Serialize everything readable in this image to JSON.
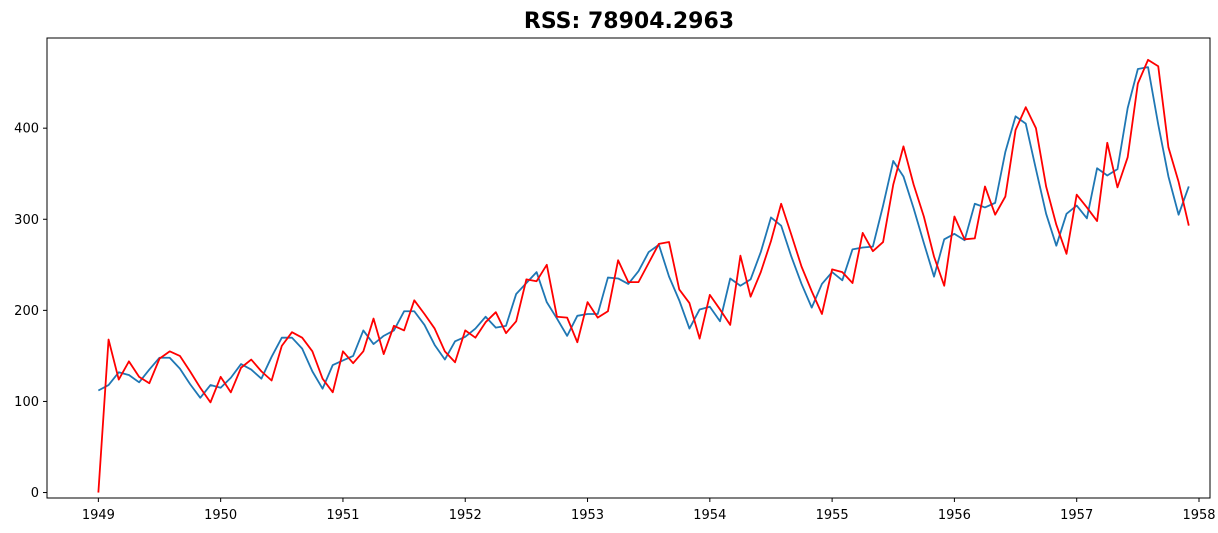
{
  "chart_data": {
    "type": "line",
    "title": "RSS: 78904.2963",
    "xlabel": "",
    "ylabel": "",
    "xlim": [
      1948.58,
      1958.09
    ],
    "ylim": [
      -6,
      499
    ],
    "x_ticks": [
      1949,
      1950,
      1951,
      1952,
      1953,
      1954,
      1955,
      1956,
      1957,
      1958
    ],
    "x_tick_labels": [
      "1949",
      "1950",
      "1951",
      "1952",
      "1953",
      "1954",
      "1955",
      "1956",
      "1957",
      "1958"
    ],
    "y_ticks": [
      0,
      100,
      200,
      300,
      400
    ],
    "y_tick_labels": [
      "0",
      "100",
      "200",
      "300",
      "400"
    ],
    "grid": false,
    "legend": "none",
    "x_start": "1949-01",
    "x_step": "1 month",
    "series": [
      {
        "color": "#1f77b4",
        "values": [
          112,
          118,
          132,
          129,
          121,
          135,
          148,
          148,
          136,
          119,
          104,
          118,
          115,
          126,
          141,
          135,
          125,
          149,
          170,
          170,
          158,
          133,
          114,
          140,
          145,
          150,
          178,
          163,
          172,
          178,
          199,
          199,
          184,
          162,
          146,
          166,
          171,
          180,
          193,
          181,
          183,
          218,
          230,
          242,
          209,
          191,
          172,
          194,
          196,
          196,
          236,
          235,
          229,
          243,
          264,
          272,
          237,
          211,
          180,
          201,
          204,
          188,
          235,
          227,
          234,
          264,
          302,
          293,
          259,
          229,
          203,
          229,
          242,
          233,
          267,
          269,
          270,
          315,
          364,
          347,
          312,
          274,
          237,
          278,
          284,
          277,
          317,
          313,
          318,
          374,
          413,
          405,
          355,
          306,
          271,
          306,
          315,
          301,
          356,
          348,
          355,
          422,
          465,
          467,
          404,
          347,
          305,
          336
        ]
      },
      {
        "color": "#ff0000",
        "values": [
          0,
          168,
          124,
          144,
          127,
          120,
          147,
          155,
          150,
          133,
          115,
          99,
          127,
          110,
          137,
          146,
          133,
          123,
          161,
          176,
          170,
          155,
          125,
          110,
          155,
          142,
          155,
          191,
          152,
          183,
          178,
          211,
          196,
          180,
          155,
          143,
          178,
          170,
          187,
          198,
          175,
          188,
          234,
          232,
          250,
          193,
          192,
          165,
          209,
          192,
          199,
          255,
          231,
          231,
          252,
          273,
          275,
          223,
          208,
          169,
          217,
          201,
          184,
          260,
          215,
          242,
          276,
          317,
          283,
          248,
          221,
          196,
          245,
          242,
          230,
          285,
          265,
          275,
          338,
          380,
          338,
          303,
          259,
          227,
          303,
          278,
          279,
          336,
          305,
          325,
          398,
          423,
          400,
          336,
          294,
          262,
          327,
          313,
          298,
          384,
          335,
          368,
          449,
          475,
          468,
          379,
          341,
          293
        ]
      }
    ]
  }
}
